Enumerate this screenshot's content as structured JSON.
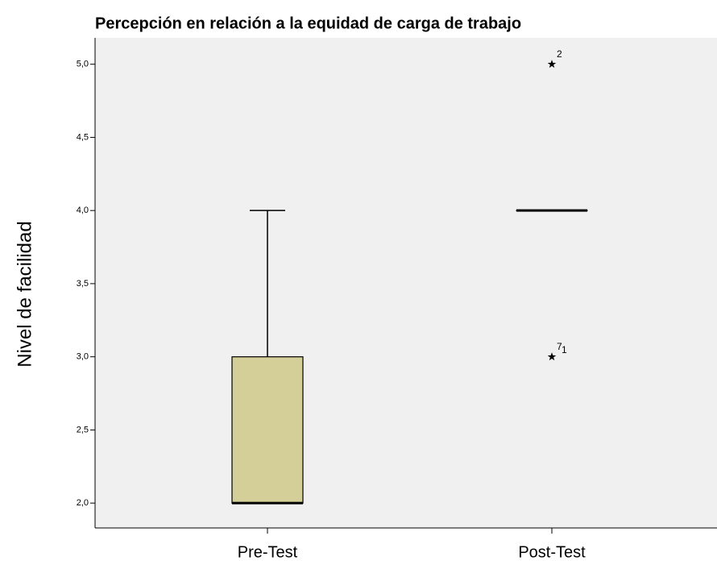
{
  "chart_data": {
    "type": "box",
    "title": "Percepción en relación a la equidad de carga de trabajo",
    "y_label": "Nivel de facilidad",
    "categories": [
      "Pre-Test",
      "Post-Test"
    ],
    "boxes": [
      {
        "min": 2,
        "q1": 2,
        "median": 2,
        "q3": 3,
        "max": 4,
        "outliers": []
      },
      {
        "min": 4,
        "q1": 4,
        "median": 4,
        "q3": 4,
        "max": 4,
        "outliers": [
          {
            "value": 5,
            "labels": [
              "2"
            ]
          },
          {
            "value": 3,
            "labels": [
              "7",
              "1"
            ]
          }
        ]
      }
    ],
    "color": "#d4cf98",
    "ylim": [
      1.83,
      5.18
    ],
    "yticks": [
      {
        "value": 2,
        "label": "2,0"
      },
      {
        "value": 2.5,
        "label": "2,5"
      },
      {
        "value": 3,
        "label": "3,0"
      },
      {
        "value": 3.5,
        "label": "3,5"
      },
      {
        "value": 4,
        "label": "4,0"
      },
      {
        "value": 4.5,
        "label": "4,5"
      },
      {
        "value": 5,
        "label": "5,0"
      }
    ]
  }
}
